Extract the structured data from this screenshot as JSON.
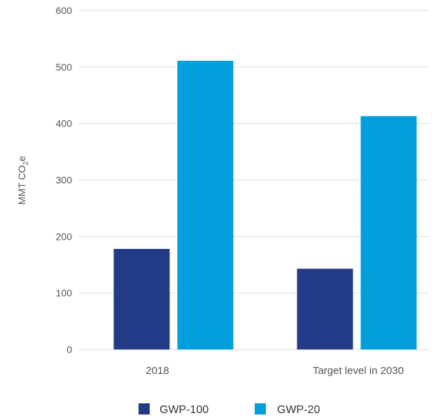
{
  "chart_data": {
    "type": "bar",
    "title": "",
    "xlabel": "",
    "ylabel": "MMT CO2e",
    "ylabel_parts": {
      "main": "MMT CO",
      "sub": "2",
      "suffix": "e"
    },
    "categories": [
      "2018",
      "Target level in 2030"
    ],
    "series": [
      {
        "name": "GWP-100",
        "color": "#233b86",
        "values": [
          178,
          143
        ]
      },
      {
        "name": "GWP-20",
        "color": "#009fdc",
        "values": [
          511,
          413
        ]
      }
    ],
    "ylim": [
      0,
      600
    ],
    "yticks": [
      0,
      100,
      200,
      300,
      400,
      500,
      600
    ],
    "grid": true,
    "legend": "bottom-center"
  }
}
